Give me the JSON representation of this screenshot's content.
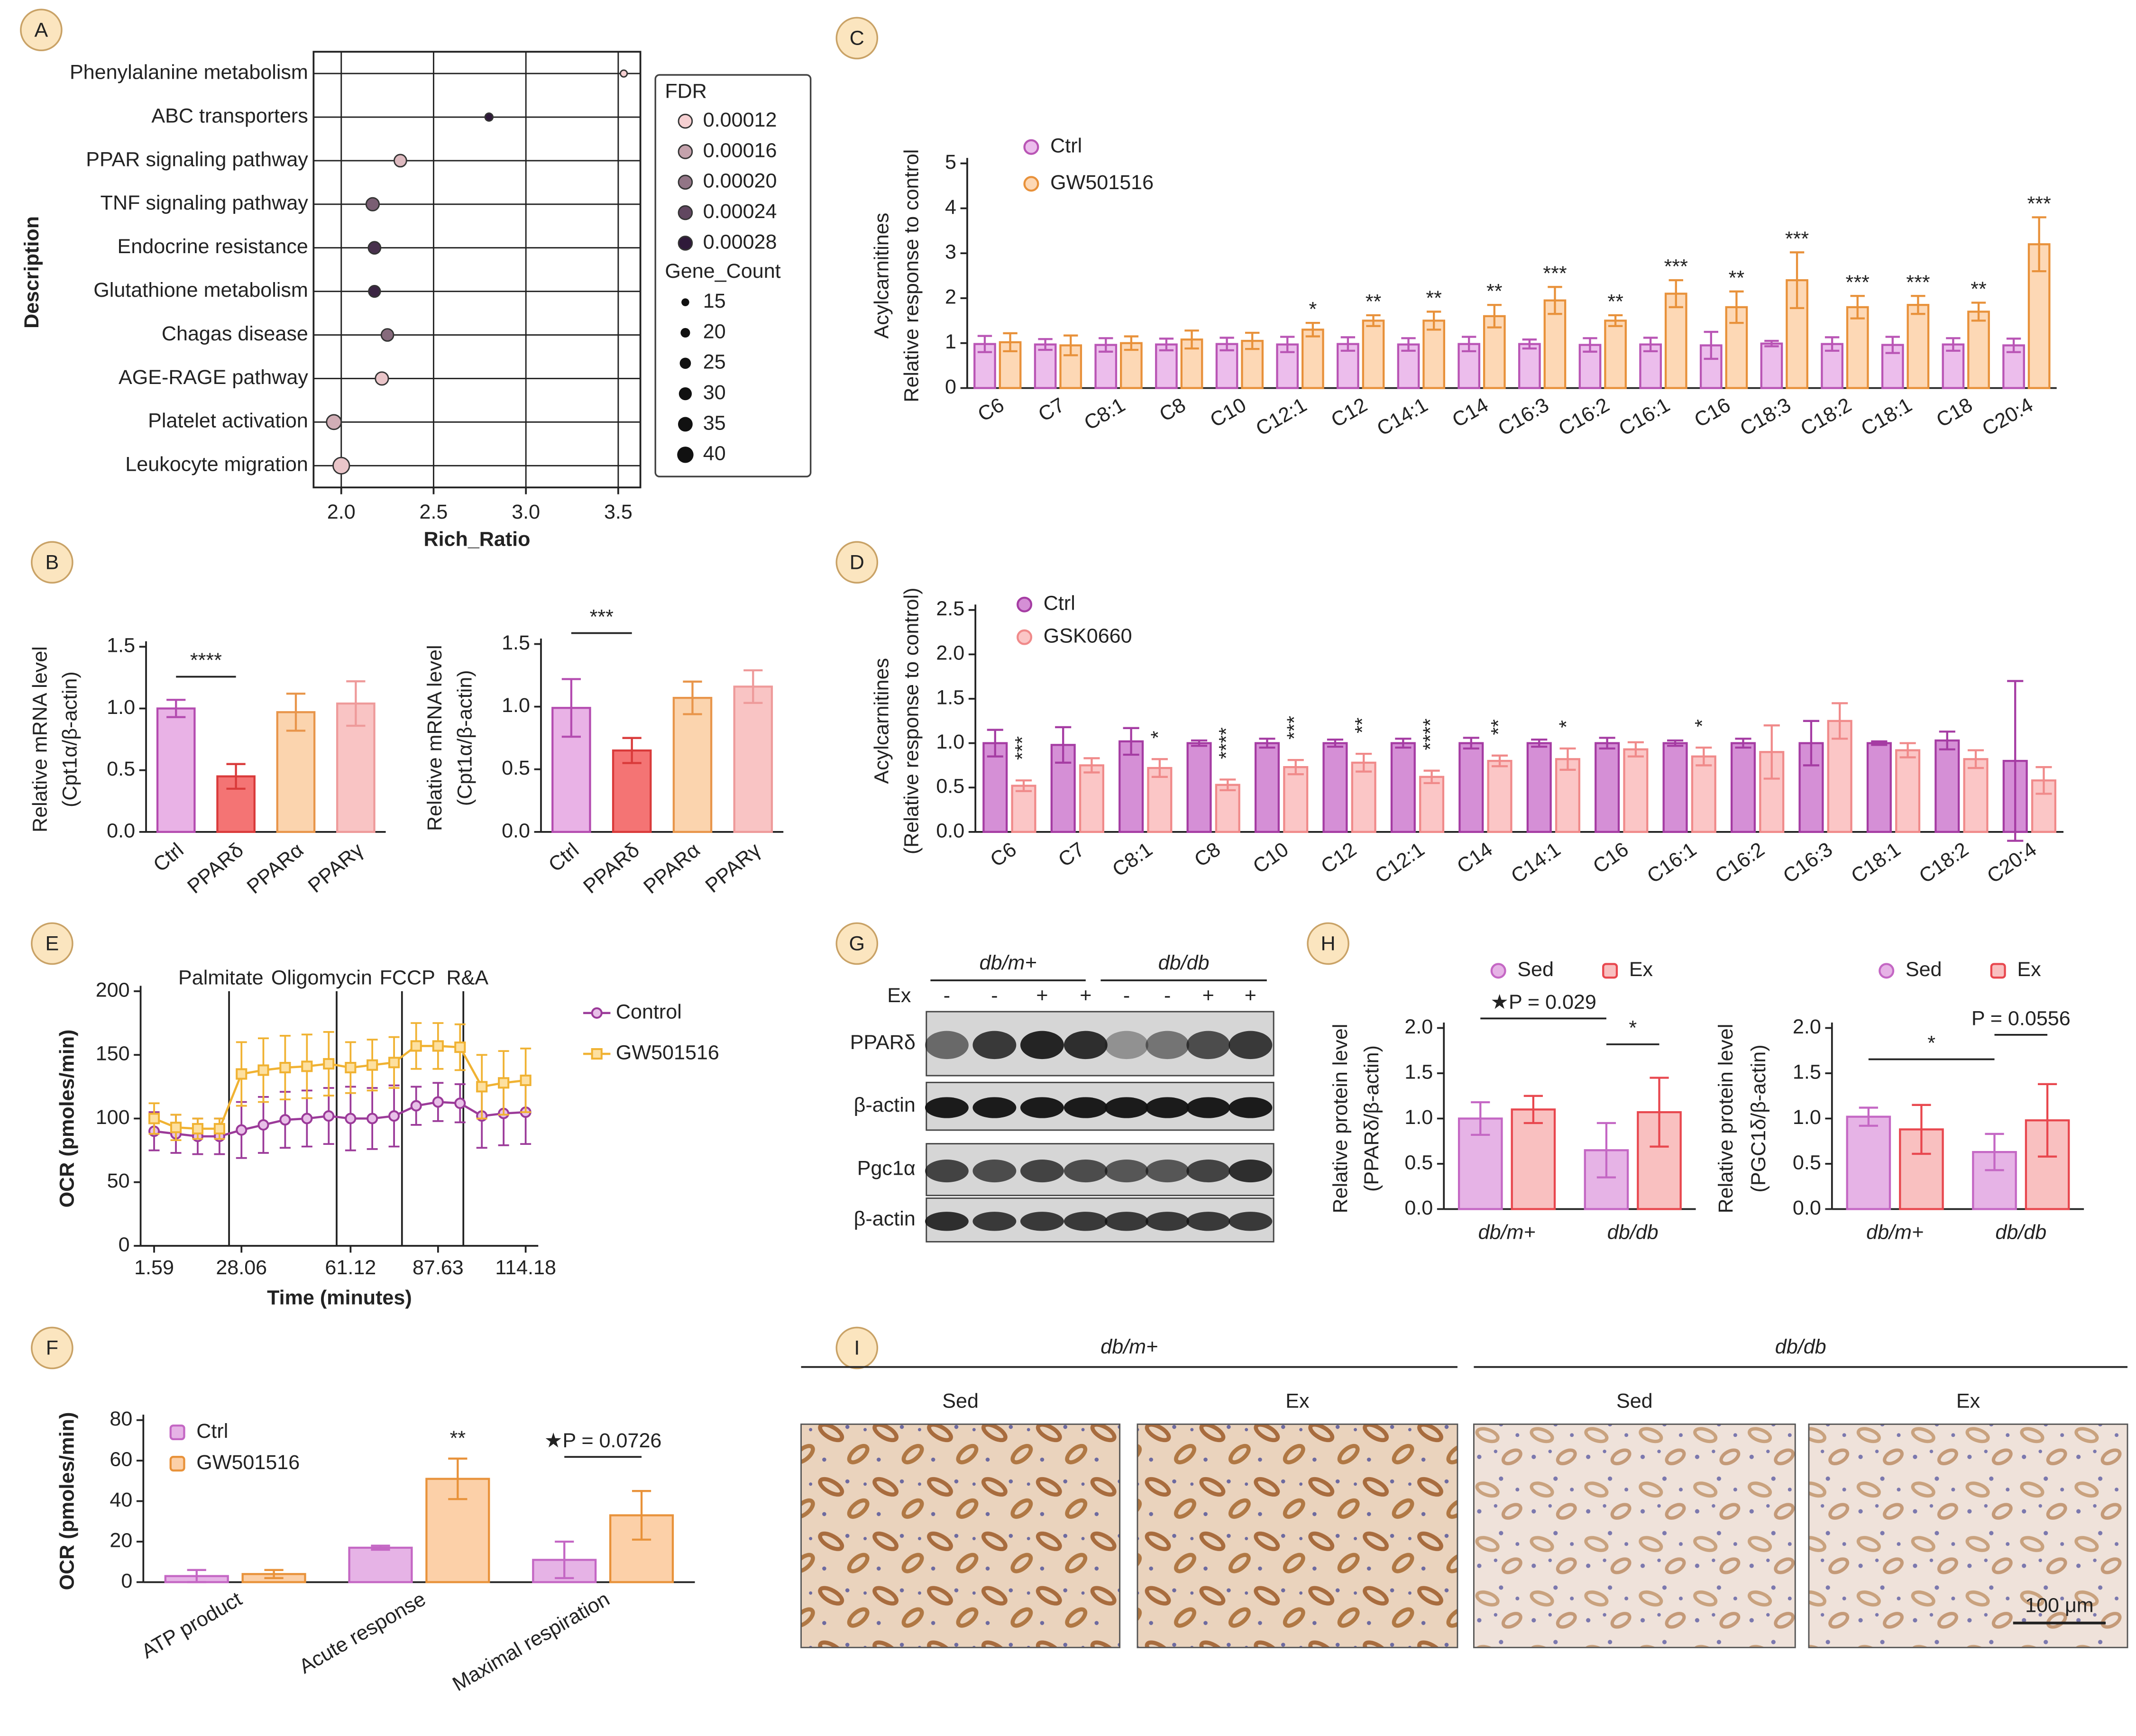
{
  "chart_data": [
    {
      "type": "dot",
      "xlabel": "Rich_Ratio",
      "ylabel": "Description",
      "categories": [
        "Phenylalanine metabolism",
        "ABC transporters",
        "PPAR signaling pathway",
        "TNF signaling pathway",
        "Endocrine resistance",
        "Glutathione metabolism",
        "Chagas disease",
        "AGE-RAGE pathway",
        "Platelet activation",
        "Leukocyte migration"
      ],
      "x": [
        3.53,
        2.8,
        2.32,
        2.17,
        2.18,
        2.18,
        2.25,
        2.22,
        1.96,
        2.0
      ],
      "fdr": [
        0.00012,
        0.00028,
        0.00014,
        0.00022,
        0.00026,
        0.00027,
        0.00021,
        0.00013,
        0.00015,
        0.00013
      ],
      "gene_count": [
        12,
        15,
        28,
        30,
        28,
        26,
        28,
        30,
        35,
        40
      ],
      "xlim": [
        1.85,
        3.62
      ],
      "xticks": [
        {
          "value": 2,
          "label": "2.0"
        },
        {
          "value": 2.5,
          "label": "2.5"
        },
        {
          "value": 3,
          "label": "3.0"
        },
        {
          "value": 3.5,
          "label": "3.5"
        }
      ],
      "grid": true,
      "colormap": [
        "#f6d0d2",
        "#2f1a3a"
      ],
      "fdr_legend_title": "FDR",
      "fdr_legend": [
        {
          "value": 0.00012,
          "label": "0.00012"
        },
        {
          "value": 0.00016,
          "label": "0.00016"
        },
        {
          "value": 0.0002,
          "label": "0.00020"
        },
        {
          "value": 0.00024,
          "label": "0.00024"
        },
        {
          "value": 0.00028,
          "label": "0.00028"
        }
      ],
      "size_legend_title": "Gene_Count",
      "size_legend": [
        15,
        20,
        25,
        30,
        35,
        40
      ]
    },
    {
      "type": "bar",
      "ylabel": [
        "Relative mRNA level",
        "(Cpt1α/β-actin)"
      ],
      "categories": [
        "Ctrl",
        "PPARδ",
        "PPARα",
        "PPARγ"
      ],
      "values": [
        1.0,
        0.45,
        0.97,
        1.04
      ],
      "errors": [
        0.07,
        0.1,
        0.15,
        0.18
      ],
      "colors": [
        "#e9b2e6",
        "#f47474",
        "#fbd4ae",
        "#f9c4c4"
      ],
      "edge_colors": [
        "#b44cb0",
        "#d93a3a",
        "#e8954a",
        "#ee9a9a"
      ],
      "ylim": [
        0,
        1.5
      ],
      "yticks": [
        {
          "value": 0,
          "label": "0.0"
        },
        {
          "value": 0.5,
          "label": "0.5"
        },
        {
          "value": 1,
          "label": "1.0"
        },
        {
          "value": 1.5,
          "label": "1.5"
        }
      ],
      "annotations": [
        "****"
      ]
    },
    {
      "type": "bar",
      "ylabel": [
        "Relative mRNA level",
        "(Cpt1α/β-actin)"
      ],
      "categories": [
        "Ctrl",
        "PPARδ",
        "PPARα",
        "PPARγ"
      ],
      "values": [
        0.99,
        0.65,
        1.07,
        1.16
      ],
      "errors": [
        0.23,
        0.1,
        0.13,
        0.13
      ],
      "colors": [
        "#e9b2e6",
        "#f47474",
        "#fbd4ae",
        "#f9c4c4"
      ],
      "edge_colors": [
        "#b44cb0",
        "#d93a3a",
        "#e8954a",
        "#ee9a9a"
      ],
      "ylim": [
        0,
        1.5
      ],
      "yticks": [
        {
          "value": 0,
          "label": "0.0"
        },
        {
          "value": 0.5,
          "label": "0.5"
        },
        {
          "value": 1,
          "label": "1.0"
        },
        {
          "value": 1.5,
          "label": "1.5"
        }
      ],
      "annotations": [
        "***"
      ]
    },
    {
      "type": "bar",
      "ylabel": [
        "Acylcarnitines",
        "Relative response to control"
      ],
      "categories": [
        "C6",
        "C7",
        "C8:1",
        "C8",
        "C10",
        "C12:1",
        "C12",
        "C14:1",
        "C14",
        "C16:3",
        "C16:2",
        "C16:1",
        "C16",
        "C18:3",
        "C18:2",
        "C18:1",
        "C18",
        "C20:4"
      ],
      "series": [
        {
          "name": "Ctrl",
          "color": "#ecbdec",
          "edge": "#b955b5",
          "marker": "circle",
          "values": [
            0.98,
            0.97,
            0.96,
            0.97,
            0.98,
            0.97,
            0.98,
            0.97,
            0.98,
            0.98,
            0.96,
            0.97,
            0.95,
            0.99,
            0.98,
            0.96,
            0.97,
            0.95
          ],
          "errors": [
            0.18,
            0.12,
            0.15,
            0.13,
            0.14,
            0.17,
            0.15,
            0.14,
            0.16,
            0.1,
            0.15,
            0.15,
            0.3,
            0.06,
            0.15,
            0.18,
            0.14,
            0.15
          ]
        },
        {
          "name": "GW501516",
          "color": "#fdd8b5",
          "edge": "#e8913a",
          "marker": "circle",
          "values": [
            1.02,
            0.95,
            1.0,
            1.08,
            1.05,
            1.3,
            1.5,
            1.5,
            1.6,
            1.95,
            1.5,
            2.1,
            1.8,
            2.4,
            1.8,
            1.85,
            1.7,
            3.2
          ],
          "errors": [
            0.2,
            0.22,
            0.15,
            0.2,
            0.18,
            0.15,
            0.12,
            0.2,
            0.25,
            0.3,
            0.12,
            0.3,
            0.35,
            0.62,
            0.25,
            0.2,
            0.2,
            0.6
          ]
        }
      ],
      "significance": [
        null,
        null,
        null,
        null,
        null,
        "*",
        "**",
        "**",
        "**",
        "***",
        "**",
        "***",
        "**",
        "***",
        "***",
        "***",
        "**",
        "***"
      ],
      "ylim": [
        0,
        5
      ],
      "yticks": [
        0,
        1,
        2,
        3,
        4,
        5
      ]
    },
    {
      "type": "bar",
      "ylabel": [
        "Acylcarnitines",
        "(Relative response to control)"
      ],
      "categories": [
        "C6",
        "C7",
        "C8:1",
        "C8",
        "C10",
        "C12",
        "C12:1",
        "C14",
        "C14:1",
        "C16",
        "C16:1",
        "C16:2",
        "C16:3",
        "C18:1",
        "C18:2",
        "C20:4"
      ],
      "series": [
        {
          "name": "Ctrl",
          "color": "#d58fd6",
          "edge": "#a53ca3",
          "marker": "circle",
          "values": [
            1.0,
            0.98,
            1.02,
            1.0,
            1.0,
            1.0,
            1.0,
            1.0,
            1.0,
            1.0,
            1.0,
            1.0,
            1.0,
            1.0,
            1.03,
            0.8
          ],
          "errors": [
            0.15,
            0.2,
            0.15,
            0.03,
            0.05,
            0.04,
            0.05,
            0.06,
            0.04,
            0.06,
            0.03,
            0.05,
            0.25,
            0.02,
            0.1,
            0.9
          ]
        },
        {
          "name": "GSK0660",
          "color": "#fbc6c6",
          "edge": "#f08a8a",
          "marker": "circle",
          "values": [
            0.52,
            0.75,
            0.72,
            0.53,
            0.73,
            0.78,
            0.62,
            0.8,
            0.82,
            0.93,
            0.85,
            0.9,
            1.25,
            0.92,
            0.82,
            0.58
          ],
          "errors": [
            0.06,
            0.08,
            0.1,
            0.06,
            0.08,
            0.1,
            0.07,
            0.06,
            0.12,
            0.08,
            0.1,
            0.3,
            0.2,
            0.08,
            0.1,
            0.15
          ]
        }
      ],
      "significance": [
        "***",
        null,
        "*",
        "****",
        "***",
        "**",
        "****",
        "**",
        "*",
        null,
        "*",
        null,
        null,
        null,
        null,
        null
      ],
      "ylim": [
        0,
        2.5
      ],
      "yticks": [
        {
          "value": 0,
          "label": "0.0"
        },
        {
          "value": 0.5,
          "label": "0.5"
        },
        {
          "value": 1,
          "label": "1.0"
        },
        {
          "value": 1.5,
          "label": "1.5"
        },
        {
          "value": 2,
          "label": "2.0"
        },
        {
          "value": 2.5,
          "label": "2.5"
        }
      ]
    },
    {
      "type": "line",
      "xlabel": "Time (minutes)",
      "ylabel": "OCR (pmoles/min)",
      "x": [
        1.59,
        8.2,
        14.8,
        21.4,
        28.06,
        34.7,
        41.3,
        47.9,
        54.5,
        61.12,
        67.7,
        74.3,
        81.0,
        87.63,
        94.3,
        100.9,
        107.5,
        114.18
      ],
      "series": [
        {
          "name": "Control",
          "color": "#9b3a99",
          "fill": "#e8c0e8",
          "marker": "circle",
          "values": [
            90,
            88,
            86,
            86,
            91,
            95,
            99,
            100,
            102,
            100,
            100,
            102,
            110,
            113,
            112,
            102,
            104,
            105
          ],
          "errors": [
            15,
            15,
            14,
            14,
            22,
            22,
            22,
            22,
            22,
            25,
            24,
            24,
            15,
            15,
            15,
            25,
            25,
            25
          ]
        },
        {
          "name": "GW501516",
          "color": "#f0b232",
          "fill": "#fde0a0",
          "marker": "square",
          "values": [
            100,
            93,
            92,
            92,
            135,
            138,
            140,
            141,
            143,
            140,
            142,
            144,
            157,
            157,
            156,
            125,
            128,
            130
          ],
          "errors": [
            12,
            10,
            8,
            8,
            25,
            25,
            25,
            25,
            25,
            20,
            20,
            20,
            18,
            18,
            18,
            25,
            25,
            25
          ]
        }
      ],
      "injections": [
        {
          "x": 24.3,
          "label": "Palmitate"
        },
        {
          "x": 56.9,
          "label": "Oligomycin"
        },
        {
          "x": 76.7,
          "label": "FCCP"
        },
        {
          "x": 95.3,
          "label": "R&A"
        }
      ],
      "xlim": [
        -2.5,
        118
      ],
      "xticks": [
        1.59,
        28.06,
        61.12,
        87.63,
        114.18
      ],
      "ylim": [
        0,
        200
      ],
      "yticks": [
        0,
        50,
        100,
        150,
        200
      ]
    },
    {
      "type": "bar",
      "ylabel": "OCR (pmoles/min)",
      "categories": [
        "ATP product",
        "Acute response",
        "Maximal respiration"
      ],
      "series": [
        {
          "name": "Ctrl",
          "color": "#e6b3e6",
          "edge": "#c467c4",
          "marker": "square",
          "values": [
            3,
            17,
            11
          ],
          "errors": [
            3,
            1,
            9
          ]
        },
        {
          "name": "GW501516",
          "color": "#fcd0a8",
          "edge": "#e8923a",
          "marker": "square",
          "values": [
            4,
            51,
            33
          ],
          "errors": [
            2,
            10,
            12
          ]
        }
      ],
      "ylim": [
        0,
        80
      ],
      "yticks": [
        0,
        20,
        40,
        60,
        80
      ],
      "annotations": [
        "**",
        "★P = 0.0726"
      ]
    },
    {
      "type": "bar",
      "ylabel": [
        "Relative protein level",
        "(PPARδ/β-actin)"
      ],
      "categories": [
        "db/m+",
        "db/db"
      ],
      "series": [
        {
          "name": "Sed",
          "color": "#e6b3e6",
          "edge": "#c467c4",
          "marker": "circle",
          "values": [
            1.0,
            0.65
          ],
          "errors": [
            0.18,
            0.3
          ]
        },
        {
          "name": "Ex",
          "color": "#f9c0c0",
          "edge": "#e8474e",
          "marker": "square",
          "values": [
            1.1,
            1.07
          ],
          "errors": [
            0.15,
            0.38
          ]
        }
      ],
      "ylim": [
        0,
        2
      ],
      "yticks": [
        {
          "value": 0,
          "label": "0.0"
        },
        {
          "value": 0.5,
          "label": "0.5"
        },
        {
          "value": 1,
          "label": "1.0"
        },
        {
          "value": 1.5,
          "label": "1.5"
        },
        {
          "value": 2,
          "label": "2.0"
        }
      ],
      "annotations": [
        "★P = 0.029",
        "*"
      ]
    },
    {
      "type": "bar",
      "ylabel": [
        "Relative protein level",
        "(PGC1δ/β-actin)"
      ],
      "categories": [
        "db/m+",
        "db/db"
      ],
      "series": [
        {
          "name": "Sed",
          "color": "#e6b3e6",
          "edge": "#c467c4",
          "marker": "circle",
          "values": [
            1.02,
            0.63
          ],
          "errors": [
            0.1,
            0.2
          ]
        },
        {
          "name": "Ex",
          "color": "#f9c0c0",
          "edge": "#e8474e",
          "marker": "square",
          "values": [
            0.88,
            0.98
          ],
          "errors": [
            0.27,
            0.4
          ]
        }
      ],
      "ylim": [
        0,
        2
      ],
      "yticks": [
        {
          "value": 0,
          "label": "0.0"
        },
        {
          "value": 0.5,
          "label": "0.5"
        },
        {
          "value": 1,
          "label": "1.0"
        },
        {
          "value": 1.5,
          "label": "1.5"
        },
        {
          "value": 2,
          "label": "2.0"
        }
      ],
      "annotations": [
        "*",
        "P = 0.0556"
      ]
    }
  ],
  "panels": [
    "A",
    "B",
    "C",
    "D",
    "E",
    "F",
    "G",
    "H",
    "I"
  ],
  "blot": {
    "groups": [
      "db/m+",
      "db/db"
    ],
    "treatment_label": "Ex",
    "treatment": [
      "-",
      "-",
      "+",
      "+",
      "-",
      "-",
      "+",
      "+"
    ],
    "rows": [
      "PPARδ",
      "β-actin",
      "Pgc1α",
      "β-actin"
    ]
  },
  "histology": {
    "groups": [
      "db/m+",
      "db/db"
    ],
    "conditions": [
      "Sed",
      "Ex",
      "Sed",
      "Ex"
    ],
    "scale_bar": "100 μm"
  }
}
